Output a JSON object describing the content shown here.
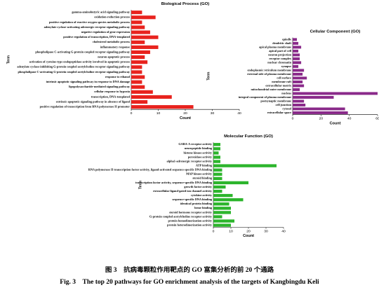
{
  "chart_data": [
    {
      "type": "bar",
      "orientation": "horizontal",
      "title": "Biological Process (GO)",
      "xlabel": "Count",
      "ylabel": "Term",
      "color": "#e8231e",
      "categories": [
        "gamma-aminobutyric acid signaling pathway",
        "oxidation-reduction process",
        "positive regulation of reactive oxygen species metabolic process",
        "adenylate cyclase-activating adrenergic receptor signaling pathway",
        "negative regulation of gene expression",
        "positive regulation of transcription, DNA-templated",
        "cholesterol metabolic process",
        "inflammatory response",
        "phospholipase C-activating G-protein coupled receptor signaling pathway",
        "neuron apoptotic process",
        "activation of cysteine-type endopeptidase activity involved in apoptotic process",
        "adenylate cyclase-inhibiting G-protein coupled acetylcholine receptor signaling pathway",
        "phospholipase C-activating G-protein coupled acetylcholine receptor signaling pathway",
        "response to ethanol",
        "intrinsic apoptotic signaling pathway in response to DNA damage",
        "lipopolysaccharide-mediated signaling pathway",
        "cellular response to hypoxia",
        "transcription, DNA-templated",
        "extrinsic apoptotic signaling pathway in absence of ligand",
        "positive regulation of transcription from RNA polymerase II promoter"
      ],
      "values": [
        4,
        9,
        4,
        5,
        7,
        10,
        5,
        10,
        7,
        5,
        6,
        4,
        4,
        5,
        4,
        5,
        8,
        15,
        6,
        23
      ],
      "xlim": [
        0,
        40
      ],
      "xticks": [
        0,
        10,
        20,
        30,
        40
      ]
    },
    {
      "type": "bar",
      "orientation": "horizontal",
      "title": "Cellular Component (GO)",
      "xlabel": "Count",
      "ylabel": "Term",
      "color": "#8a2a8a",
      "categories": [
        "spindle",
        "dendritic shaft",
        "apical plasma membrane",
        "apical part of cell",
        "neuron projection",
        "receptor complex",
        "nuclear chromatin",
        "synapse",
        "endoplasmic reticulum membrane",
        "external side of plasma membrane",
        "cell surface",
        "membrane raft",
        "extracellular matrix",
        "mitochondrial outer membrane",
        "nucleus",
        "integral component of plasma membrane",
        "postsynaptic membrane",
        "cell junction",
        "cytosol",
        "extracellular space"
      ],
      "values": [
        3,
        4,
        6,
        4,
        5,
        5,
        6,
        4,
        8,
        7,
        10,
        7,
        8,
        5,
        60,
        29,
        8,
        9,
        37,
        39
      ],
      "xlim": [
        0,
        60
      ],
      "xticks": [
        0,
        20,
        40,
        60
      ]
    },
    {
      "type": "bar",
      "orientation": "horizontal",
      "title": "Molecular Function (GO)",
      "xlabel": "Count",
      "ylabel": "Term",
      "color": "#2cb52c",
      "categories": [
        "GABA-A receptor activity",
        "neuropeptide binding",
        "histone kinase activity",
        "peroxidase activity",
        "alpha1-adrenergic receptor activity",
        "ATP binding",
        "RNA polymerase II transcription factor activity, ligand-activated sequence-specific DNA binding",
        "MAP kinase activity",
        "steroid binding",
        "transcription factor activity, sequence-specific DNA binding",
        "growth factor activity",
        "extracellular ligand-gated ion channel activity",
        "cytokine activity",
        "sequence-specific DNA binding",
        "identical protein binding",
        "heme binding",
        "steroid hormone receptor activity",
        "G-protein coupled acetylcholine receptor activity",
        "protein homodimerization activity",
        "protein heterodimerization activity"
      ],
      "values": [
        4,
        4,
        3,
        4,
        4,
        36,
        5,
        5,
        5,
        20,
        7,
        5,
        11,
        17,
        9,
        10,
        10,
        5,
        12,
        10
      ],
      "xlim": [
        0,
        40
      ],
      "xticks": [
        0,
        10,
        20,
        30,
        40
      ]
    }
  ],
  "caption": {
    "zh": "图 3　抗病毒颗粒作用靶点的 GO 富集分析的前 20 个通路",
    "en": "Fig. 3　The top 20 pathways for GO enrichment analysis of the targets of Kangbingdu Keli"
  }
}
